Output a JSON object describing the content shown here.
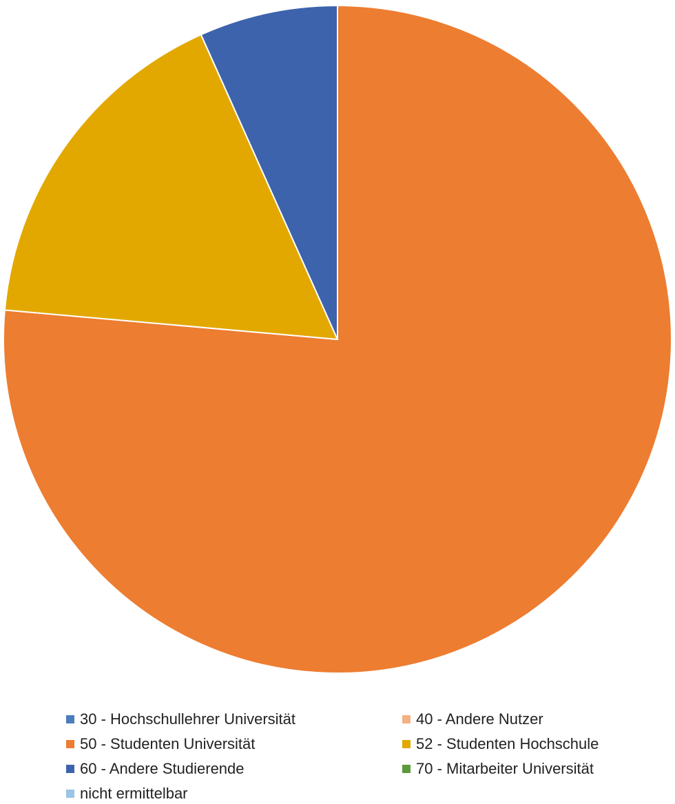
{
  "chart_data": {
    "type": "pie",
    "title": "",
    "start_angle_deg": 0,
    "direction": "clockwise",
    "legend_position": "bottom",
    "slices": [
      {
        "label": "30 - Hochschullehrer Universität",
        "value": 0,
        "color": "#4a7ebb"
      },
      {
        "label": "40 - Andere Nutzer",
        "value": 0,
        "color": "#f4b183"
      },
      {
        "label": "50 - Studenten Universität",
        "value": 76.4,
        "color": "#ed7d31"
      },
      {
        "label": "52 - Studenten Hochschule",
        "value": 16.9,
        "color": "#e2a800"
      },
      {
        "label": "60 - Andere Studierende",
        "value": 6.7,
        "color": "#3c63ac"
      },
      {
        "label": "70 - Mitarbeiter Universität",
        "value": 0,
        "color": "#5b9a3a"
      },
      {
        "label": "nicht ermittelbar",
        "value": 0,
        "color": "#9dc3e6"
      }
    ]
  }
}
